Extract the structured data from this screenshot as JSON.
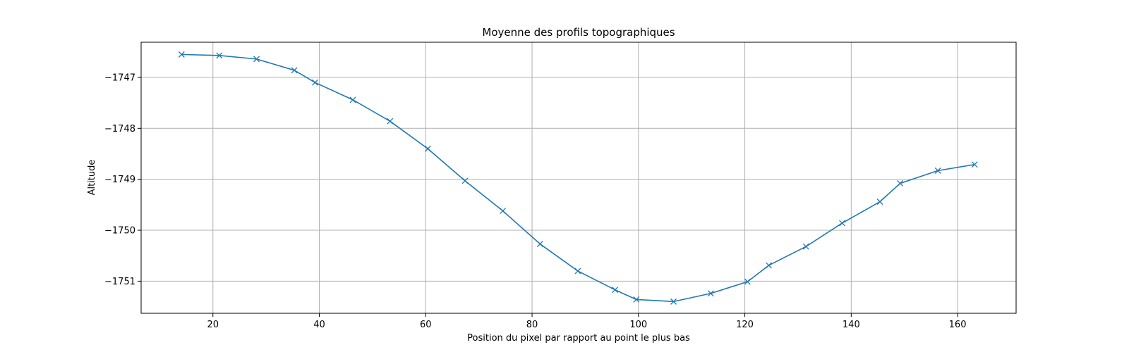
{
  "chart_data": {
    "type": "line",
    "title": "Moyenne des profils topographiques",
    "xlabel": "Position du pixel par rapport au point le plus bas",
    "ylabel": "Altitude",
    "xlim": [
      6.5,
      171
    ],
    "ylim": [
      -1751.63,
      -1746.31
    ],
    "xticks": [
      20,
      40,
      60,
      80,
      100,
      120,
      140,
      160
    ],
    "yticks": [
      -1747,
      -1748,
      -1749,
      -1750,
      -1751
    ],
    "xtick_labels": [
      "20",
      "40",
      "60",
      "80",
      "100",
      "120",
      "140",
      "160"
    ],
    "ytick_labels": [
      "−1747",
      "−1748",
      "−1749",
      "−1750",
      "−1751"
    ],
    "grid": true,
    "series": [
      {
        "color": "#1f77b4",
        "marker": "x",
        "x": [
          14.1,
          21.2,
          28.2,
          35.3,
          39.2,
          46.3,
          53.3,
          60.4,
          67.4,
          74.5,
          81.5,
          88.6,
          95.6,
          99.6,
          106.6,
          113.6,
          120.5,
          124.5,
          131.5,
          138.3,
          145.4,
          149.2,
          156.3,
          163.2
        ],
        "y": [
          -1746.55,
          -1746.57,
          -1746.64,
          -1746.86,
          -1747.1,
          -1747.44,
          -1747.86,
          -1748.4,
          -1749.03,
          -1749.62,
          -1750.27,
          -1750.8,
          -1751.17,
          -1751.36,
          -1751.4,
          -1751.24,
          -1751.01,
          -1750.69,
          -1750.32,
          -1749.86,
          -1749.44,
          -1749.08,
          -1748.83,
          -1748.71
        ]
      }
    ]
  }
}
